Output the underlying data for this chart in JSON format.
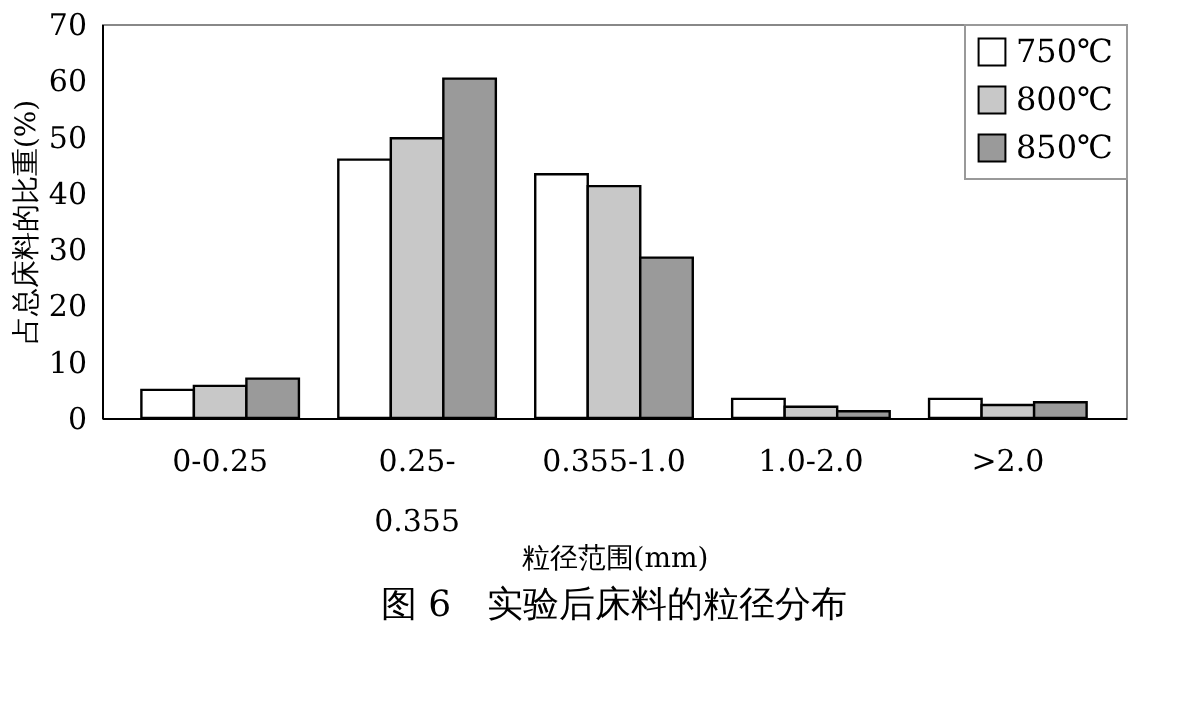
{
  "chart_data": {
    "type": "bar",
    "title": "图 6　实验后床料的粒径分布",
    "xlabel": "粒径范围(mm)",
    "ylabel": "占总床料的比重(%)",
    "categories": [
      "0-0.25",
      "0.25-0.355",
      "0.355-1.0",
      "1.0-2.0",
      ">2.0"
    ],
    "series": [
      {
        "name": "750℃",
        "color": "#ffffff",
        "values": [
          5.0,
          45.9,
          43.3,
          3.4,
          3.4
        ]
      },
      {
        "name": "800℃",
        "color": "#c8c8c8",
        "values": [
          5.7,
          49.7,
          41.2,
          2.0,
          2.3
        ]
      },
      {
        "name": "850℃",
        "color": "#9a9a9a",
        "values": [
          7.0,
          60.3,
          28.5,
          1.2,
          2.8
        ]
      }
    ],
    "ylim": [
      0,
      70
    ],
    "yticks": [
      0,
      10,
      20,
      30,
      40,
      50,
      60,
      70
    ],
    "grid": false,
    "legend": "top right"
  }
}
